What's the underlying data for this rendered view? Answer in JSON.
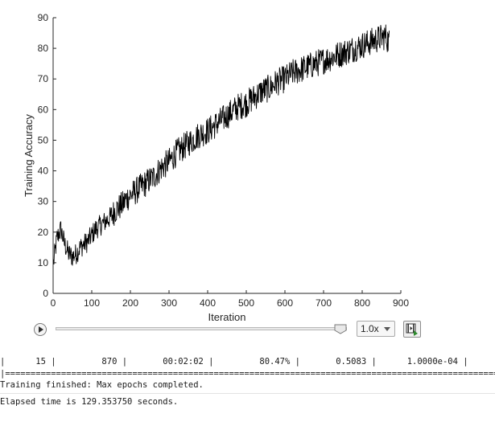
{
  "chart_data": {
    "type": "line",
    "xlabel": "Iteration",
    "ylabel": "Training Accuracy",
    "xlim": [
      0,
      900
    ],
    "ylim": [
      0,
      90
    ],
    "xticks": [
      0,
      100,
      200,
      300,
      400,
      500,
      600,
      700,
      800,
      900
    ],
    "yticks": [
      0,
      10,
      20,
      30,
      40,
      50,
      60,
      70,
      80,
      90
    ],
    "series": [
      {
        "color": "#000000",
        "x": [
          1,
          10,
          20,
          30,
          40,
          50,
          60,
          70,
          80,
          90,
          100,
          110,
          120,
          130,
          140,
          150,
          160,
          170,
          180,
          190,
          200,
          220,
          240,
          260,
          280,
          300,
          320,
          340,
          360,
          380,
          400,
          420,
          440,
          460,
          480,
          500,
          520,
          540,
          560,
          580,
          600,
          620,
          640,
          660,
          680,
          700,
          720,
          740,
          760,
          780,
          800,
          820,
          840,
          860,
          870
        ],
        "y": [
          10,
          18,
          21,
          16,
          13,
          12,
          13,
          15,
          16,
          17,
          19,
          21,
          22,
          23,
          24,
          25,
          27,
          28,
          29,
          31,
          32,
          34,
          36,
          38,
          41,
          43,
          46,
          48,
          50,
          52,
          53,
          55,
          57,
          59,
          61,
          62,
          64,
          66,
          67,
          69,
          70,
          72,
          73,
          74,
          75,
          76,
          77,
          78,
          79,
          80,
          81,
          82,
          83,
          84,
          82
        ]
      }
    ],
    "grid": false
  },
  "controls": {
    "speed_value": "1.0x"
  },
  "console": {
    "progress_row": "|      15 |         870 |       00:02:02 |         80.47% |       0.5083 |      1.0000e-04 |",
    "separator_row": "|==================================================================================================|",
    "finished_message": "Training finished: Max epochs completed.",
    "elapsed_message": "Elapsed time is 129.353750 seconds."
  },
  "icons": {
    "play": "play-icon",
    "slider_thumb": "slider-thumb-icon",
    "dropdown": "chevron-down-icon",
    "export": "export-video-icon"
  }
}
